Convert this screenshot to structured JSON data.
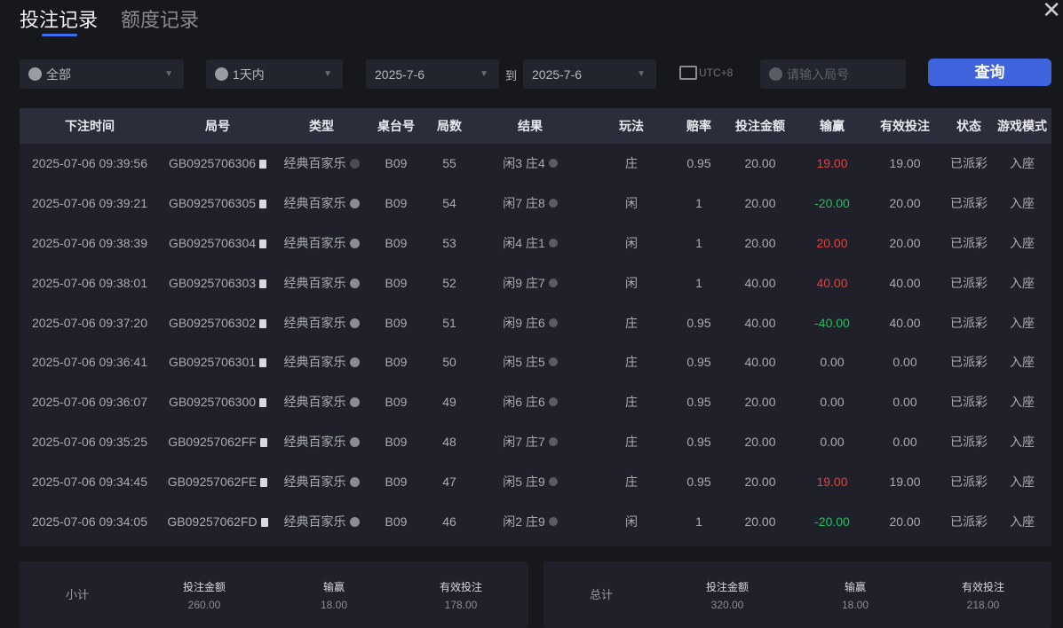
{
  "tabs": [
    {
      "label": "投注记录",
      "active": true
    },
    {
      "label": "额度记录",
      "active": false
    }
  ],
  "filters": {
    "game": {
      "value": "全部",
      "icon": "spade-icon"
    },
    "range": {
      "value": "1天内",
      "icon": "clock-icon"
    },
    "start_date": "2025-7-6",
    "to_label": "到",
    "end_date": "2025-7-6",
    "timezone": "UTC+8",
    "search_placeholder": "请输入局号",
    "query_label": "查询"
  },
  "table": {
    "headers": [
      "下注时间",
      "局号",
      "类型",
      "桌台号",
      "局数",
      "结果",
      "玩法",
      "赔率",
      "投注金额",
      "输赢",
      "有效投注",
      "状态",
      "游戏模式"
    ],
    "rows": [
      [
        "2025-07-06 09:39:56",
        "GB0925706306",
        "经典百家乐",
        "B09",
        "55",
        "闲3 庄4",
        "庄",
        "0.95",
        "20.00",
        "19.00",
        "19.00",
        "已派彩",
        "入座"
      ],
      [
        "2025-07-06 09:39:21",
        "GB0925706305",
        "经典百家乐",
        "B09",
        "54",
        "闲7 庄8",
        "闲",
        "1",
        "20.00",
        "-20.00",
        "20.00",
        "已派彩",
        "入座"
      ],
      [
        "2025-07-06 09:38:39",
        "GB0925706304",
        "经典百家乐",
        "B09",
        "53",
        "闲4 庄1",
        "闲",
        "1",
        "20.00",
        "20.00",
        "20.00",
        "已派彩",
        "入座"
      ],
      [
        "2025-07-06 09:38:01",
        "GB0925706303",
        "经典百家乐",
        "B09",
        "52",
        "闲9 庄7",
        "闲",
        "1",
        "40.00",
        "40.00",
        "40.00",
        "已派彩",
        "入座"
      ],
      [
        "2025-07-06 09:37:20",
        "GB0925706302",
        "经典百家乐",
        "B09",
        "51",
        "闲9 庄6",
        "庄",
        "0.95",
        "40.00",
        "-40.00",
        "40.00",
        "已派彩",
        "入座"
      ],
      [
        "2025-07-06 09:36:41",
        "GB0925706301",
        "经典百家乐",
        "B09",
        "50",
        "闲5 庄5",
        "庄",
        "0.95",
        "40.00",
        "0.00",
        "0.00",
        "已派彩",
        "入座"
      ],
      [
        "2025-07-06 09:36:07",
        "GB0925706300",
        "经典百家乐",
        "B09",
        "49",
        "闲6 庄6",
        "庄",
        "0.95",
        "20.00",
        "0.00",
        "0.00",
        "已派彩",
        "入座"
      ],
      [
        "2025-07-06 09:35:25",
        "GB09257062FF",
        "经典百家乐",
        "B09",
        "48",
        "闲7 庄7",
        "庄",
        "0.95",
        "20.00",
        "0.00",
        "0.00",
        "已派彩",
        "入座"
      ],
      [
        "2025-07-06 09:34:45",
        "GB09257062FE",
        "经典百家乐",
        "B09",
        "47",
        "闲5 庄9",
        "庄",
        "0.95",
        "20.00",
        "19.00",
        "19.00",
        "已派彩",
        "入座"
      ],
      [
        "2025-07-06 09:34:05",
        "GB09257062FD",
        "经典百家乐",
        "B09",
        "46",
        "闲2 庄9",
        "闲",
        "1",
        "20.00",
        "-20.00",
        "20.00",
        "已派彩",
        "入座"
      ]
    ]
  },
  "subtotal": {
    "label": "小计",
    "bet_label": "投注金额",
    "bet": "260.00",
    "win_label": "输赢",
    "win": "18.00",
    "valid_label": "有效投注",
    "valid": "178.00"
  },
  "total": {
    "label": "总计",
    "bet_label": "投注金额",
    "bet": "320.00",
    "win_label": "输赢",
    "win": "18.00",
    "valid_label": "有效投注",
    "valid": "218.00"
  },
  "colors": {
    "accent": "#3e63dc",
    "win": "#e5413b",
    "loss": "#1fc25c"
  }
}
